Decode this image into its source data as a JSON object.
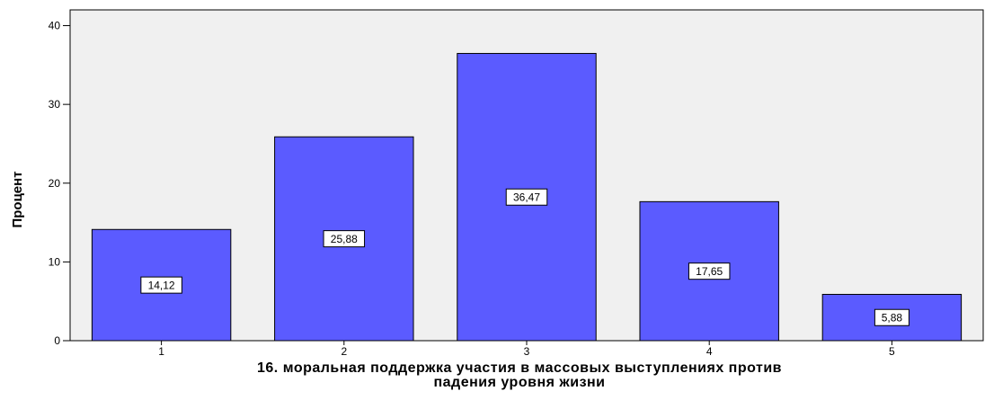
{
  "chart_data": {
    "type": "bar",
    "categories": [
      "1",
      "2",
      "3",
      "4",
      "5"
    ],
    "values": [
      14.12,
      25.88,
      36.47,
      17.65,
      5.88
    ],
    "data_labels": [
      "14,12",
      "25,88",
      "36,47",
      "17,65",
      "5,88"
    ],
    "title": "",
    "xlabel_line1": "16. моральная поддержка  участия в массовых выступлениях против",
    "xlabel_line2": "падения уровня жизни",
    "ylabel": "Процент",
    "ylim": [
      0,
      42
    ],
    "yticks": [
      0,
      10,
      20,
      30,
      40
    ],
    "grid": false,
    "colors": {
      "bar": "#5b5bff",
      "plot_bg": "#f0f0f0",
      "label_bg": "#ffffff"
    }
  }
}
